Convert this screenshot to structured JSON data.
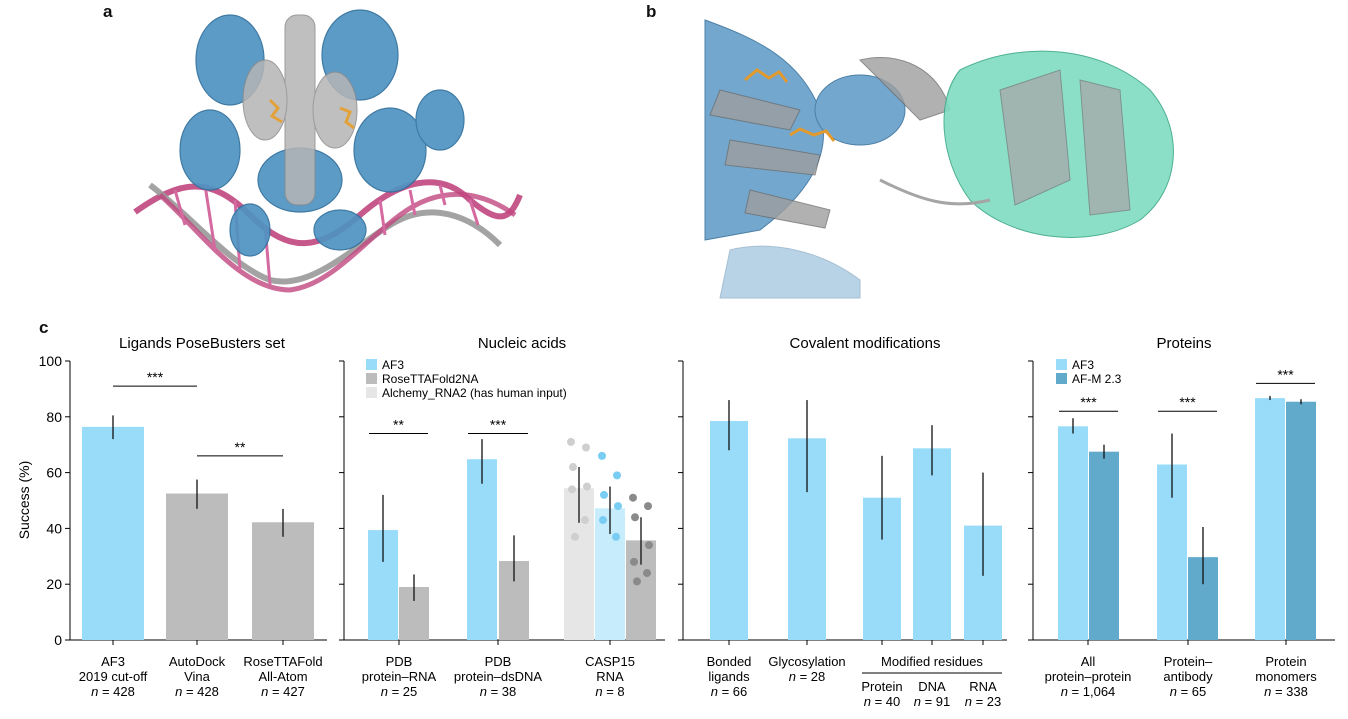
{
  "panels": {
    "a": "a",
    "b": "b",
    "c": "c"
  },
  "colors": {
    "af3": "#99dcf9",
    "af3_light": "#c7ecfc",
    "grey": "#bcbcbc",
    "light_grey": "#e6e6e6",
    "afm": "#62aacb",
    "dot_grey": "#8a8a8a",
    "dot_blue": "#79cdf3",
    "dot_light": "#cfcfcf"
  },
  "chart_data": {
    "type": "bar",
    "ylabel": "Success (%)",
    "ylim": [
      0,
      100
    ],
    "yticks": [
      "0",
      "20",
      "40",
      "60",
      "80",
      "100"
    ],
    "groups": [
      {
        "title": "Ligands PoseBusters set",
        "legend": [],
        "bars": [
          {
            "value": 76.4,
            "err": [
              72,
              80.5
            ],
            "color": "af3",
            "dots": [],
            "label": [
              "AF3",
              "2019 cut-off"
            ],
            "n": "= 428"
          },
          {
            "value": 52.5,
            "err": [
              47,
              57.5
            ],
            "color": "grey",
            "dots": [],
            "label": [
              "AutoDock",
              "Vina"
            ],
            "n": "= 428"
          },
          {
            "value": 42.2,
            "err": [
              37,
              47
            ],
            "color": "grey",
            "dots": [],
            "label": [
              "RoseTTAFold",
              "All-Atom"
            ],
            "n": "= 427"
          }
        ],
        "sig": [
          {
            "from": 0,
            "to": 1,
            "y": 91,
            "text": "***"
          },
          {
            "from": 1,
            "to": 2,
            "y": 66,
            "text": "**"
          }
        ]
      },
      {
        "title": "Nucleic acids",
        "legend": [
          {
            "color": "af3",
            "text": "AF3"
          },
          {
            "color": "grey",
            "text": "RoseTTAFold2NA"
          },
          {
            "color": "light_grey",
            "text": "Alchemy_RNA2 (has human input)"
          }
        ],
        "bars": [
          {
            "value": 39.4,
            "err": [
              28,
              52
            ],
            "color": "af3",
            "dots": [],
            "cat": 0
          },
          {
            "value": 19,
            "err": [
              14,
              23.5
            ],
            "color": "grey",
            "dots": [],
            "cat": 0
          },
          {
            "value": 64.8,
            "err": [
              56,
              72
            ],
            "color": "af3",
            "dots": [],
            "cat": 1
          },
          {
            "value": 28.3,
            "err": [
              21,
              37.5
            ],
            "color": "grey",
            "dots": [],
            "cat": 1
          },
          {
            "value": 54.4,
            "err": [
              42,
              62
            ],
            "color": "light_grey",
            "dot_color": "dot_light",
            "dots": [
              71,
              69,
              62,
              55,
              54,
              43,
              37
            ],
            "cat": 2
          },
          {
            "value": 47.2,
            "err": [
              38,
              55
            ],
            "color": "af3_light",
            "dot_color": "dot_blue",
            "dots": [
              66,
              59,
              52,
              48,
              43,
              37
            ],
            "cat": 2
          },
          {
            "value": 35.7,
            "err": [
              27,
              44
            ],
            "color": "grey",
            "dot_color": "dot_grey",
            "dots": [
              51,
              48,
              44,
              34,
              28,
              24,
              21
            ],
            "cat": 2
          }
        ],
        "categories": [
          {
            "label": [
              "PDB",
              "protein–RNA"
            ],
            "n": "= 25"
          },
          {
            "label": [
              "PDB",
              "protein–dsDNA"
            ],
            "n": "= 38"
          },
          {
            "label": [
              "CASP15",
              "RNA"
            ],
            "n": "= 8"
          }
        ],
        "sig": [
          {
            "from": 0,
            "to": 1,
            "y": 74,
            "text": "**"
          },
          {
            "from": 2,
            "to": 3,
            "y": 74,
            "text": "***"
          }
        ]
      },
      {
        "title": "Covalent modifications",
        "legend": [],
        "bars": [
          {
            "value": 78.5,
            "err": [
              68,
              86
            ],
            "color": "af3",
            "dots": [],
            "label": [
              "Bonded",
              "ligands"
            ],
            "n": "= 66"
          },
          {
            "value": 72.3,
            "err": [
              53,
              86
            ],
            "color": "af3",
            "dots": [],
            "label": [
              "Glycosylation"
            ],
            "n": "= 28"
          },
          {
            "value": 51,
            "err": [
              36,
              66
            ],
            "color": "af3",
            "dots": [],
            "label": [
              "Protein"
            ],
            "n": "= 40"
          },
          {
            "value": 68.7,
            "err": [
              59,
              77
            ],
            "color": "af3",
            "dots": [],
            "label": [
              "DNA"
            ],
            "n": "= 91"
          },
          {
            "value": 41,
            "err": [
              23,
              60
            ],
            "color": "af3",
            "dots": [],
            "label": [
              "RNA"
            ],
            "n": "= 23"
          }
        ],
        "bracket_label": "Modified residues",
        "sig": []
      },
      {
        "title": "Proteins",
        "legend": [
          {
            "color": "af3",
            "text": "AF3"
          },
          {
            "color": "afm",
            "text": "AF-M 2.3"
          }
        ],
        "bars": [
          {
            "value": 76.6,
            "err": [
              74,
              79.5
            ],
            "color": "af3",
            "dots": [],
            "cat": 0
          },
          {
            "value": 67.5,
            "err": [
              65,
              70
            ],
            "color": "afm",
            "dots": [],
            "cat": 0
          },
          {
            "value": 62.9,
            "err": [
              51,
              74
            ],
            "color": "af3",
            "dots": [],
            "cat": 1
          },
          {
            "value": 29.7,
            "err": [
              20,
              40.5
            ],
            "color": "afm",
            "dots": [],
            "cat": 1
          },
          {
            "value": 86.7,
            "err": [
              86,
              87.5
            ],
            "color": "af3",
            "dots": [],
            "cat": 2
          },
          {
            "value": 85.4,
            "err": [
              84.5,
              86.3
            ],
            "color": "afm",
            "dots": [],
            "cat": 2
          }
        ],
        "categories": [
          {
            "label": [
              "All",
              "protein–protein"
            ],
            "n": "= 1,064"
          },
          {
            "label": [
              "Protein–",
              "antibody"
            ],
            "n": "= 65"
          },
          {
            "label": [
              "Protein",
              "monomers"
            ],
            "n": "= 338"
          }
        ],
        "sig": [
          {
            "from": 0,
            "to": 1,
            "y": 82,
            "text": "***"
          },
          {
            "from": 2,
            "to": 3,
            "y": 82,
            "text": "***"
          },
          {
            "from": 4,
            "to": 5,
            "y": 92,
            "text": "***"
          }
        ]
      }
    ]
  }
}
